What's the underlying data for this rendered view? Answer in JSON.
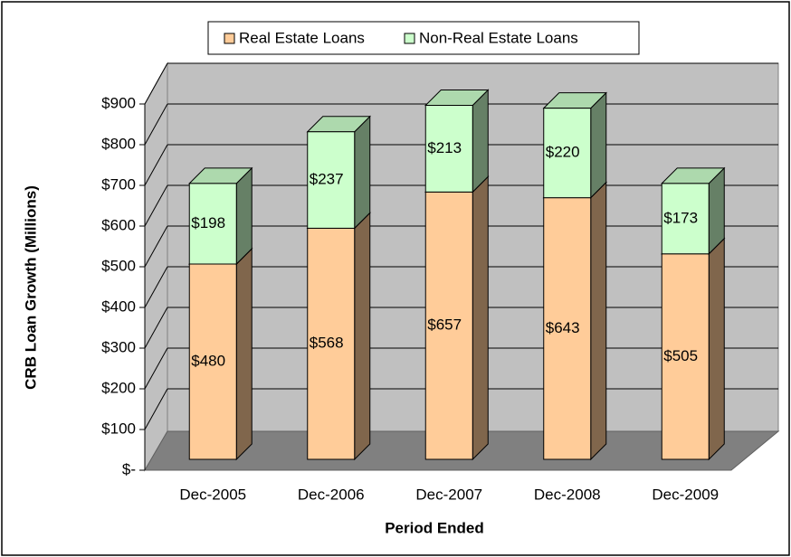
{
  "chart_data": {
    "type": "bar3d-stacked",
    "y_label": "CRB Loan Growth (Millions)",
    "x_label": "Period Ended",
    "categories": [
      "Dec-2005",
      "Dec-2006",
      "Dec-2007",
      "Dec-2008",
      "Dec-2009"
    ],
    "series": [
      {
        "name": "Real Estate Loans",
        "color": "#ffcc99",
        "values": [
          480,
          568,
          657,
          643,
          505
        ],
        "value_labels": [
          "$480",
          "$568",
          "$657",
          "$643",
          "$505"
        ]
      },
      {
        "name": "Non-Real Estate Loans",
        "color": "#ccffcc",
        "values": [
          198,
          237,
          213,
          220,
          173
        ],
        "value_labels": [
          "$198",
          "$237",
          "$213",
          "$220",
          "$173"
        ]
      }
    ],
    "ylim": [
      0,
      900
    ],
    "yticks": [
      {
        "value": 0,
        "label": "$-"
      },
      {
        "value": 100,
        "label": "$100"
      },
      {
        "value": 200,
        "label": "$200"
      },
      {
        "value": 300,
        "label": "$300"
      },
      {
        "value": 400,
        "label": "$400"
      },
      {
        "value": 500,
        "label": "$500"
      },
      {
        "value": 600,
        "label": "$600"
      },
      {
        "value": 700,
        "label": "$700"
      },
      {
        "value": 800,
        "label": "$800"
      },
      {
        "value": 900,
        "label": "$900"
      }
    ],
    "grid": true,
    "legend": "top"
  }
}
